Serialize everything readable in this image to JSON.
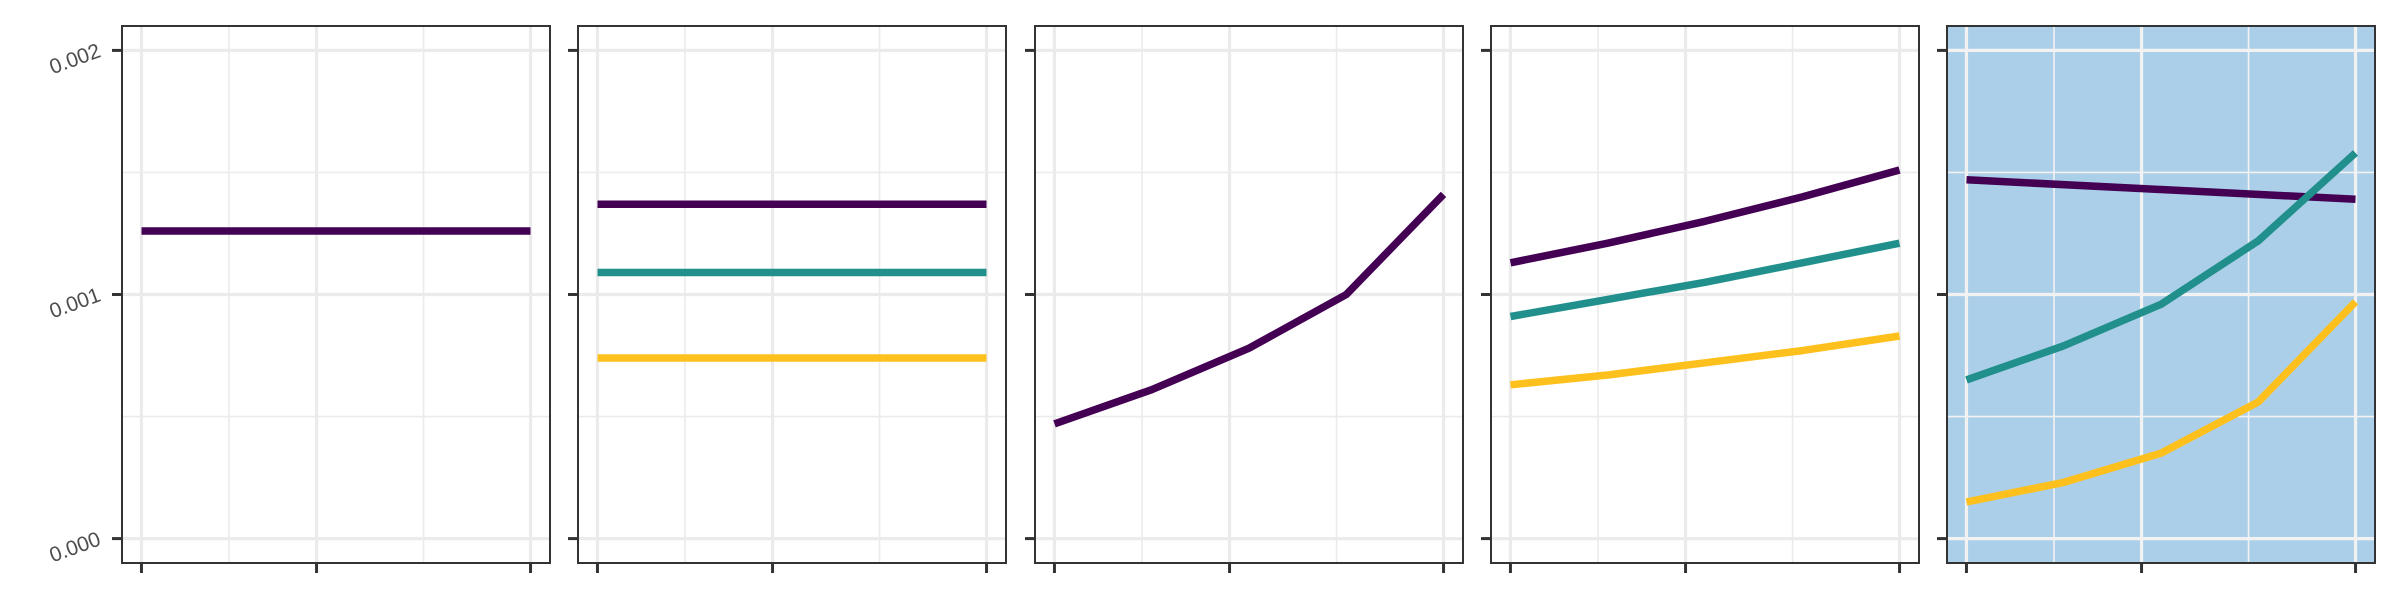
{
  "chart_data": {
    "type": "line",
    "y_tick_labels": [
      "0.000",
      "0.001",
      "0.002"
    ],
    "y_ticks": [
      0,
      0.001,
      0.002
    ],
    "ylim": [
      -0.0001,
      0.0021
    ],
    "xlim": [
      -0.05,
      1.05
    ],
    "x_ticks": [
      0,
      0.45,
      1
    ],
    "grid": true,
    "legend": "none",
    "colors": {
      "purple": "#440154",
      "teal": "#21908C",
      "yellow": "#FDC01C"
    },
    "panels": [
      {
        "background": "#FFFFFF",
        "series": [
          {
            "color": "purple",
            "x": [
              0,
              1
            ],
            "y": [
              0.00126,
              0.00126
            ]
          }
        ]
      },
      {
        "background": "#FFFFFF",
        "series": [
          {
            "color": "purple",
            "x": [
              0,
              1
            ],
            "y": [
              0.00137,
              0.00137
            ]
          },
          {
            "color": "teal",
            "x": [
              0,
              1
            ],
            "y": [
              0.00109,
              0.00109
            ]
          },
          {
            "color": "yellow",
            "x": [
              0,
              1
            ],
            "y": [
              0.00074,
              0.00074
            ]
          }
        ]
      },
      {
        "background": "#FFFFFF",
        "series": [
          {
            "color": "purple",
            "x": [
              0,
              0.25,
              0.5,
              0.75,
              1
            ],
            "y": [
              0.00047,
              0.00061,
              0.00078,
              0.001,
              0.00141
            ]
          }
        ]
      },
      {
        "background": "#FFFFFF",
        "series": [
          {
            "color": "purple",
            "x": [
              0,
              0.25,
              0.5,
              0.75,
              1
            ],
            "y": [
              0.00113,
              0.00121,
              0.0013,
              0.0014,
              0.00151
            ]
          },
          {
            "color": "teal",
            "x": [
              0,
              0.25,
              0.5,
              0.75,
              1
            ],
            "y": [
              0.00091,
              0.00098,
              0.00105,
              0.00113,
              0.00121
            ]
          },
          {
            "color": "yellow",
            "x": [
              0,
              0.25,
              0.5,
              0.75,
              1
            ],
            "y": [
              0.00063,
              0.00067,
              0.00072,
              0.00077,
              0.00083
            ]
          }
        ]
      },
      {
        "background": "#ACCFE9",
        "series": [
          {
            "color": "purple",
            "x": [
              0,
              0.5,
              1
            ],
            "y": [
              0.00147,
              0.00143,
              0.00139
            ]
          },
          {
            "color": "teal",
            "x": [
              0,
              0.25,
              0.5,
              0.75,
              1
            ],
            "y": [
              0.00065,
              0.00079,
              0.00096,
              0.00122,
              0.00158
            ]
          },
          {
            "color": "yellow",
            "x": [
              0,
              0.25,
              0.5,
              0.75,
              1
            ],
            "y": [
              0.00015,
              0.00023,
              0.00035,
              0.00056,
              0.00097
            ]
          }
        ]
      }
    ]
  }
}
